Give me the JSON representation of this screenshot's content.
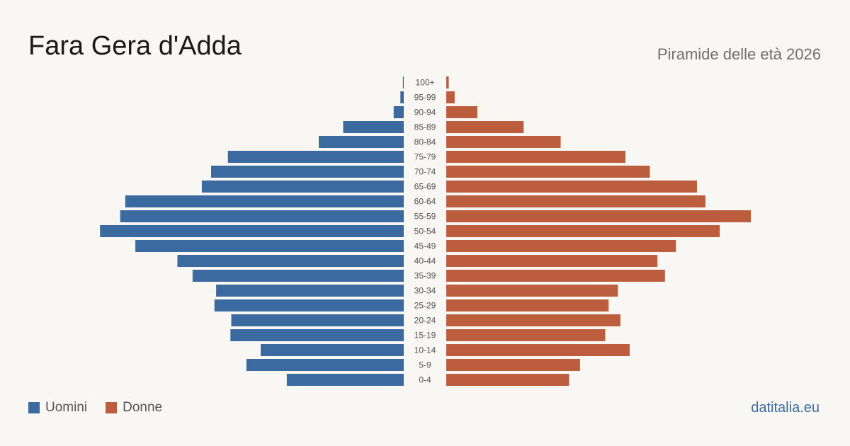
{
  "header": {
    "title": "Fara Gera d'Adda",
    "subtitle": "Piramide delle età 2026"
  },
  "legend": {
    "men_label": "Uomini",
    "women_label": "Donne"
  },
  "footer": {
    "site": "datitalia.eu"
  },
  "colors": {
    "men": "#3b6aa0",
    "women": "#bc5e3e",
    "background": "#f9f7f3"
  },
  "chart_data": {
    "type": "bar",
    "orientation": "horizontal-mirrored",
    "categories": [
      "100+",
      "95-99",
      "90-94",
      "85-89",
      "80-84",
      "75-79",
      "70-74",
      "65-69",
      "60-64",
      "55-59",
      "50-54",
      "45-49",
      "40-44",
      "35-39",
      "30-34",
      "25-29",
      "20-24",
      "15-19",
      "10-14",
      "5-9",
      "0-4"
    ],
    "series": [
      {
        "name": "Uomini",
        "values": [
          1,
          4,
          12,
          72,
          101,
          209,
          229,
          240,
          331,
          337,
          361,
          319,
          269,
          251,
          223,
          225,
          205,
          206,
          170,
          187,
          139
        ]
      },
      {
        "name": "Donne",
        "values": [
          3,
          10,
          37,
          92,
          136,
          213,
          242,
          298,
          308,
          362,
          325,
          273,
          251,
          260,
          204,
          193,
          207,
          189,
          218,
          159,
          146
        ]
      }
    ],
    "xlim": [
      0,
      362
    ],
    "grid": false,
    "legend_position": "bottom-left"
  }
}
